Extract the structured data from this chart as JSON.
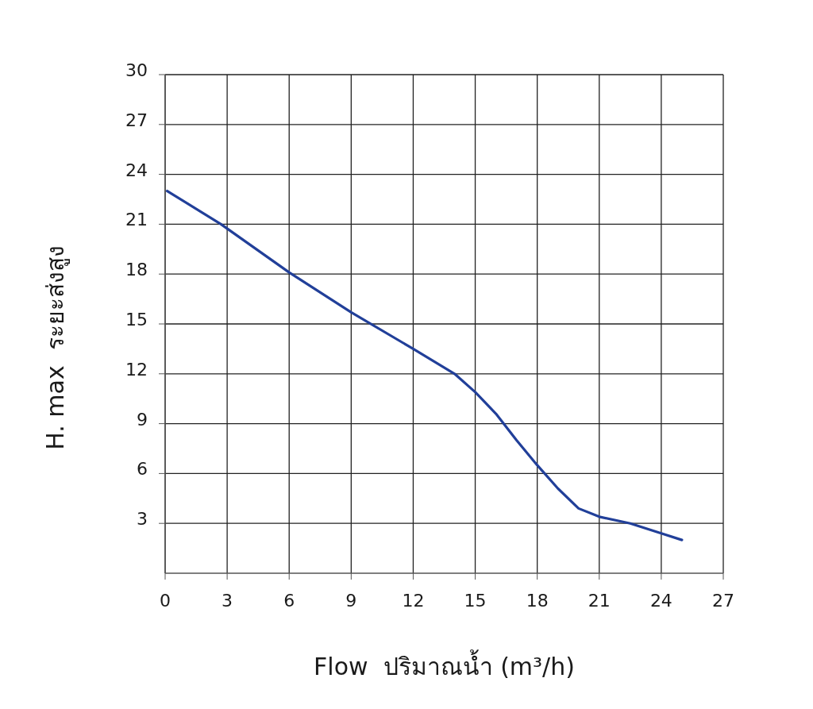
{
  "chart_data": {
    "type": "line",
    "xlabel": "Flow  ปริมาณน้ำ (m³/h)",
    "ylabel": "H. max  ระยะส่งสูง",
    "xlim": [
      0,
      27
    ],
    "xticks": [
      0,
      3,
      6,
      9,
      12,
      15,
      18,
      21,
      24,
      27
    ],
    "ylim": [
      0,
      30
    ],
    "yticks": [
      3,
      6,
      9,
      12,
      15,
      18,
      21,
      24,
      27,
      30
    ],
    "grid": true,
    "marker": "none",
    "line_style": "solid",
    "series": [
      {
        "color": "#213f99",
        "x": [
          0.1,
          2.7,
          6,
          9,
          12,
          14,
          15,
          16,
          17,
          18,
          19,
          20,
          21,
          22.5,
          24,
          25
        ],
        "values": [
          23.0,
          21.0,
          18.1,
          15.7,
          13.5,
          12.0,
          10.9,
          9.6,
          8.0,
          6.5,
          5.1,
          3.9,
          3.4,
          3.0,
          2.4,
          2.0
        ]
      }
    ]
  }
}
